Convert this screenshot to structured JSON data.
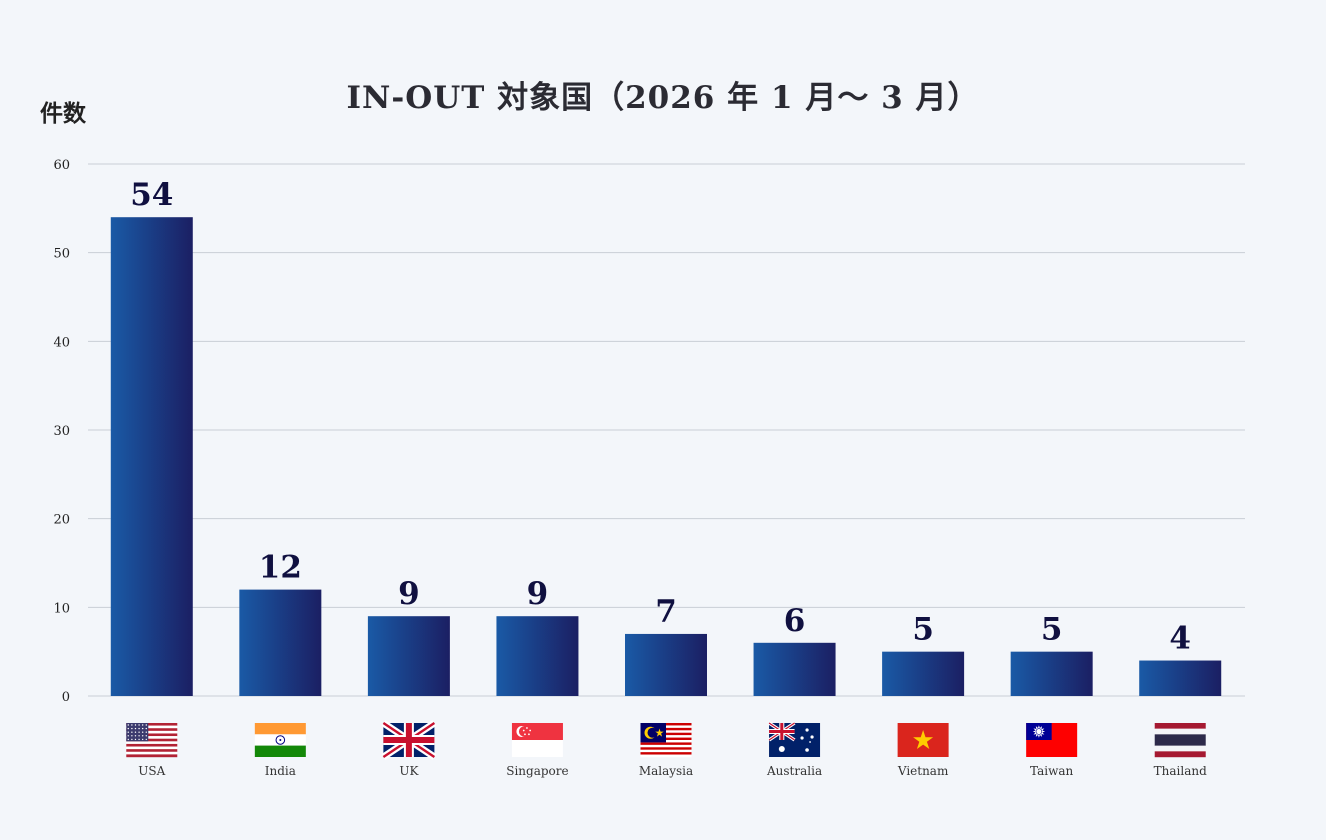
{
  "chart_data": {
    "type": "bar",
    "title": "IN-OUT 対象国（2026 年 1 月〜 3 月）",
    "ylabel": "件数",
    "xlabel": "",
    "ylim": [
      0,
      60
    ],
    "yticks": [
      0,
      10,
      20,
      30,
      40,
      50,
      60
    ],
    "grid": true,
    "categories": [
      "USA",
      "India",
      "UK",
      "Singapore",
      "Malaysia",
      "Australia",
      "Vietnam",
      "Taiwan",
      "Thailand"
    ],
    "values": [
      54,
      12,
      9,
      9,
      7,
      6,
      5,
      5,
      4
    ],
    "flag_icons": [
      "usa-flag-icon",
      "india-flag-icon",
      "uk-flag-icon",
      "singapore-flag-icon",
      "malaysia-flag-icon",
      "australia-flag-icon",
      "vietnam-flag-icon",
      "taiwan-flag-icon",
      "thailand-flag-icon"
    ],
    "colors": {
      "bar_start": "#1a5aa6",
      "bar_end": "#1b1f63",
      "grid": "#c9ced6",
      "value_label": "#101040"
    }
  }
}
